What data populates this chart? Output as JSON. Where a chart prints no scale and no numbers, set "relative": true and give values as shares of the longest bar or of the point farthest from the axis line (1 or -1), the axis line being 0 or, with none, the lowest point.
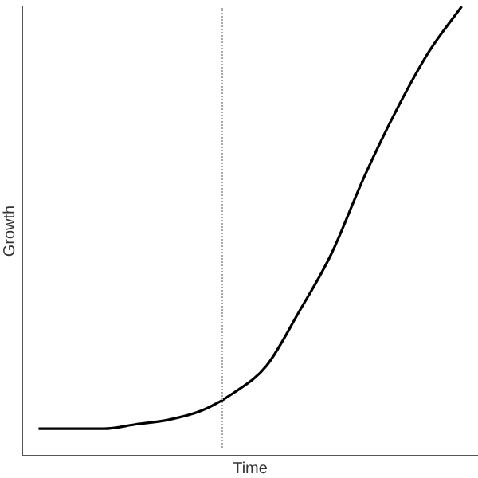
{
  "chart_data": {
    "type": "line",
    "relative": true,
    "xlabel": "Time",
    "ylabel": "Growth",
    "categories": [
      null,
      null,
      null,
      null,
      null,
      null,
      null,
      null,
      null,
      null,
      null,
      null,
      null,
      null
    ],
    "series": [
      {
        "color": "#000000",
        "values": [
          0.06,
          0.06,
          0.06,
          0.07,
          0.08,
          0.1,
          0.14,
          0.2,
          0.32,
          0.45,
          0.62,
          0.77,
          0.9,
          1
        ]
      }
    ],
    "marker": "none",
    "grid": false,
    "legend": false,
    "tick_labels": false
  }
}
